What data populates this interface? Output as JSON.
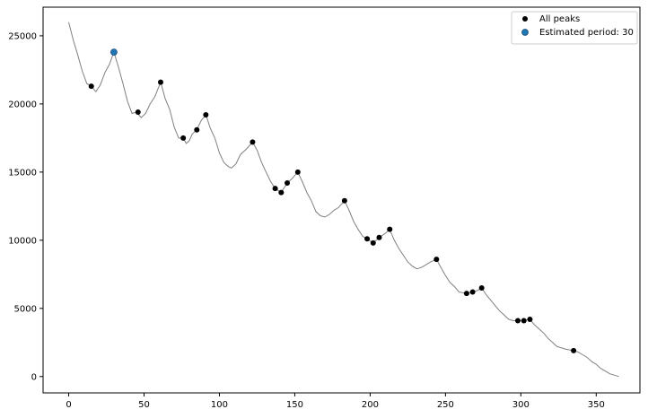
{
  "chart_data": {
    "type": "line",
    "title": "",
    "xlabel": "",
    "ylabel": "",
    "xlim": [
      -17,
      379
    ],
    "ylim": [
      -1200,
      27100
    ],
    "x_ticks": [
      0,
      50,
      100,
      150,
      200,
      250,
      300,
      350
    ],
    "y_ticks": [
      0,
      5000,
      10000,
      15000,
      20000,
      25000
    ],
    "grid": false,
    "legend_position": "top-right",
    "colors": {
      "line": "#808080",
      "all_peaks": "#000000",
      "estimated": "#1f77b4"
    },
    "line_series": {
      "x": [
        0,
        3,
        6,
        9,
        12,
        15,
        18,
        21,
        24,
        27,
        30,
        33,
        36,
        39,
        42,
        45,
        48,
        51,
        54,
        57,
        61,
        64,
        67,
        70,
        73,
        76,
        78,
        80,
        82,
        85,
        88,
        91,
        94,
        97,
        100,
        103,
        106,
        108,
        111,
        114,
        118,
        122,
        125,
        128,
        131,
        134,
        137,
        141,
        145,
        148,
        152,
        155,
        158,
        161,
        164,
        167,
        170,
        173,
        176,
        179,
        183,
        186,
        189,
        192,
        195,
        198,
        202,
        206,
        210,
        213,
        216,
        219,
        222,
        225,
        228,
        231,
        234,
        237,
        240,
        244,
        247,
        250,
        253,
        256,
        259,
        264,
        268,
        271,
        274,
        277,
        280,
        283,
        286,
        289,
        292,
        295,
        298,
        302,
        306,
        309,
        312,
        315,
        318,
        321,
        324,
        327,
        330,
        335,
        338,
        341,
        344,
        347,
        350,
        353,
        356,
        359,
        362,
        365
      ],
      "y": [
        26000,
        24700,
        23600,
        22400,
        21500,
        21300,
        20900,
        21400,
        22300,
        22900,
        23800,
        22700,
        21500,
        20200,
        19300,
        19400,
        19000,
        19300,
        20000,
        20500,
        21600,
        20400,
        19600,
        18300,
        17500,
        17500,
        17100,
        17300,
        17800,
        18100,
        18800,
        19200,
        18200,
        17500,
        16400,
        15700,
        15400,
        15300,
        15600,
        16300,
        16700,
        17200,
        16600,
        15700,
        15000,
        14300,
        13800,
        13500,
        14200,
        14500,
        15000,
        14300,
        13500,
        12900,
        12100,
        11800,
        11700,
        11900,
        12200,
        12400,
        12900,
        12200,
        11400,
        10800,
        10300,
        10100,
        9800,
        10200,
        10500,
        10800,
        10000,
        9400,
        8900,
        8400,
        8100,
        7900,
        8000,
        8200,
        8400,
        8600,
        8000,
        7400,
        6900,
        6600,
        6200,
        6100,
        6200,
        6300,
        6500,
        6000,
        5600,
        5200,
        4800,
        4500,
        4200,
        4100,
        4100,
        4100,
        4200,
        3800,
        3500,
        3200,
        2800,
        2500,
        2200,
        2100,
        2000,
        1900,
        1800,
        1600,
        1400,
        1100,
        900,
        600,
        400,
        200,
        100,
        0
      ]
    },
    "series": [
      {
        "name": "All peaks",
        "points": [
          [
            15,
            21300
          ],
          [
            46,
            19400
          ],
          [
            61,
            21600
          ],
          [
            76,
            17500
          ],
          [
            85,
            18100
          ],
          [
            91,
            19200
          ],
          [
            122,
            17200
          ],
          [
            137,
            13800
          ],
          [
            141,
            13500
          ],
          [
            145,
            14200
          ],
          [
            152,
            15000
          ],
          [
            183,
            12900
          ],
          [
            198,
            10100
          ],
          [
            202,
            9800
          ],
          [
            206,
            10200
          ],
          [
            213,
            10800
          ],
          [
            244,
            8600
          ],
          [
            264,
            6100
          ],
          [
            268,
            6200
          ],
          [
            274,
            6500
          ],
          [
            298,
            4100
          ],
          [
            302,
            4100
          ],
          [
            306,
            4200
          ],
          [
            335,
            1900
          ]
        ]
      },
      {
        "name": "Estimated period: 30",
        "points": [
          [
            30,
            23800
          ]
        ]
      }
    ]
  }
}
